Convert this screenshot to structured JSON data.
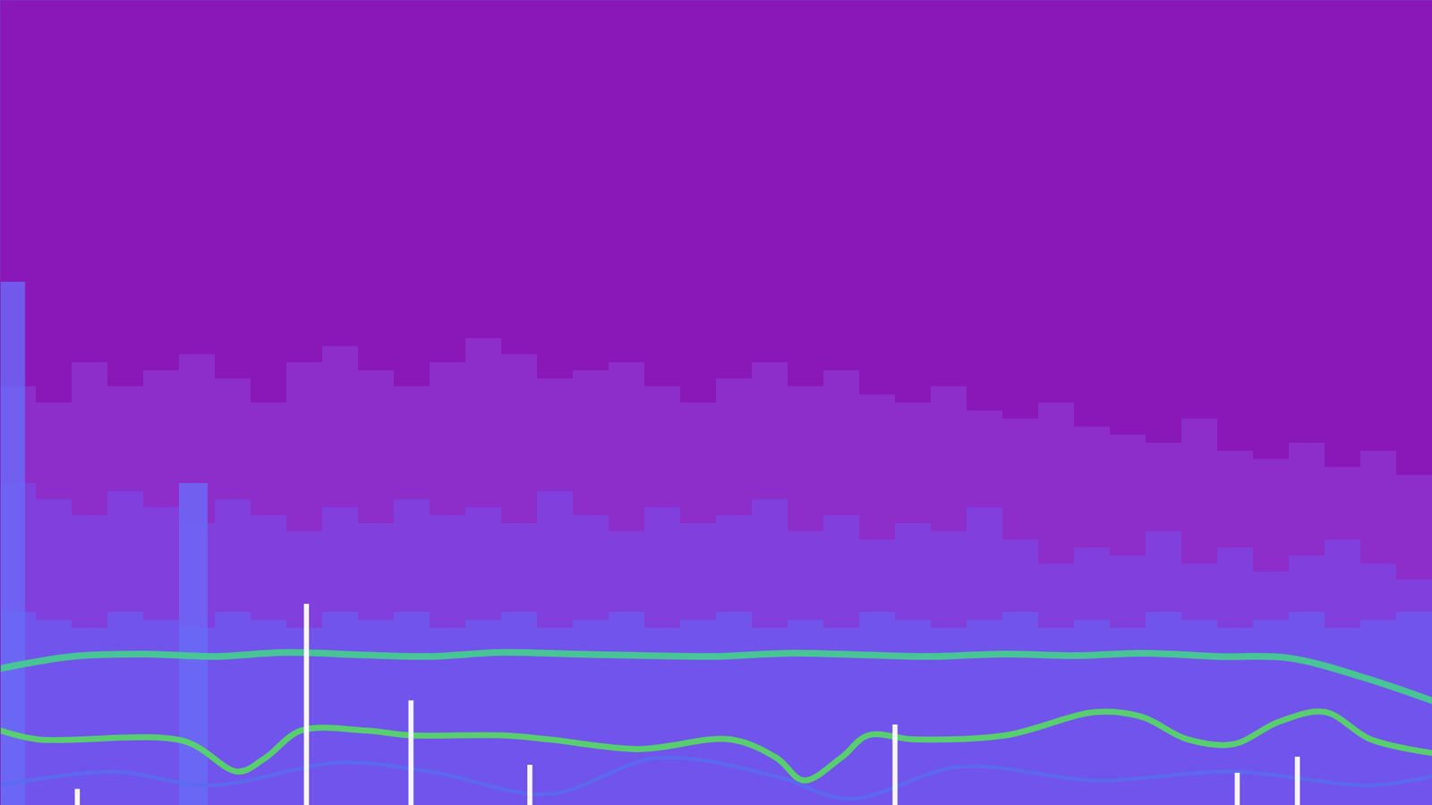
{
  "chart_data": {
    "type": "bar",
    "tick_labels": false,
    "grid": false,
    "xlim": [
      0,
      100
    ],
    "ylim": [
      0,
      100
    ],
    "series": [
      {
        "type": "bar",
        "marker": "column",
        "color": "#8e34d0",
        "x": [
          1.25,
          3.75,
          6.25,
          8.75,
          11.25,
          13.75,
          16.25,
          18.75,
          21.25,
          23.75,
          26.25,
          28.75,
          31.25,
          33.75,
          36.25,
          38.75,
          41.25,
          43.75,
          46.25,
          48.75,
          51.25,
          53.75,
          56.25,
          58.75,
          61.25,
          63.75,
          66.25,
          68.75,
          71.25,
          73.75,
          76.25,
          78.75,
          81.25,
          83.75,
          86.25,
          88.75,
          91.25,
          93.75,
          96.25,
          98.75
        ],
        "values": [
          52,
          50,
          55,
          52,
          54,
          56,
          53,
          50,
          55,
          57,
          54,
          52,
          55,
          58,
          56,
          53,
          54,
          55,
          52,
          50,
          53,
          55,
          52,
          54,
          51,
          50,
          52,
          49,
          48,
          50,
          47,
          46,
          45,
          48,
          44,
          43,
          45,
          42,
          44,
          41
        ]
      },
      {
        "type": "bar",
        "marker": "column",
        "color": "#7d46e2",
        "x": [
          1.25,
          3.75,
          6.25,
          8.75,
          11.25,
          13.75,
          16.25,
          18.75,
          21.25,
          23.75,
          26.25,
          28.75,
          31.25,
          33.75,
          36.25,
          38.75,
          41.25,
          43.75,
          46.25,
          48.75,
          51.25,
          53.75,
          56.25,
          58.75,
          61.25,
          63.75,
          66.25,
          68.75,
          71.25,
          73.75,
          76.25,
          78.75,
          81.25,
          83.75,
          86.25,
          88.75,
          91.25,
          93.75,
          96.25,
          98.75
        ],
        "values": [
          40,
          38,
          36,
          39,
          37,
          35,
          38,
          36,
          34,
          37,
          35,
          38,
          36,
          37,
          35,
          39,
          36,
          34,
          37,
          35,
          36,
          38,
          34,
          36,
          33,
          35,
          34,
          37,
          33,
          30,
          32,
          31,
          34,
          30,
          32,
          29,
          31,
          33,
          30,
          28
        ]
      },
      {
        "type": "bar",
        "marker": "column",
        "color": "#6c5cf2",
        "x": [
          1.25,
          3.75,
          6.25,
          8.75,
          11.25,
          13.75,
          16.25,
          18.75,
          21.25,
          23.75,
          26.25,
          28.75,
          31.25,
          33.75,
          36.25,
          38.75,
          41.25,
          43.75,
          46.25,
          48.75,
          51.25,
          53.75,
          56.25,
          58.75,
          61.25,
          63.75,
          66.25,
          68.75,
          71.25,
          73.75,
          76.25,
          78.75,
          81.25,
          83.75,
          86.25,
          88.75,
          91.25,
          93.75,
          96.25,
          98.75
        ],
        "values": [
          24,
          23,
          22,
          24,
          23,
          22,
          24,
          23,
          22,
          24,
          23,
          24,
          22,
          23,
          24,
          22,
          23,
          24,
          22,
          23,
          24,
          22,
          23,
          22,
          24,
          23,
          22,
          23,
          24,
          22,
          23,
          22,
          24,
          23,
          22,
          23,
          24,
          22,
          23,
          24
        ]
      },
      {
        "type": "bar",
        "marker": "block",
        "color": "#6a6cf8",
        "x": [
          0.75,
          13.5
        ],
        "values": [
          65,
          40
        ]
      },
      {
        "type": "line",
        "color": "#44d08c",
        "x": [
          0,
          5,
          10,
          15,
          20,
          25,
          30,
          35,
          40,
          45,
          50,
          55,
          60,
          65,
          70,
          75,
          80,
          85,
          90,
          95,
          100
        ],
        "values": [
          17,
          18.5,
          18.8,
          18.5,
          19,
          18.7,
          18.5,
          19,
          18.8,
          18.6,
          18.5,
          18.9,
          18.7,
          18.5,
          18.8,
          18.6,
          18.9,
          18.5,
          18.3,
          16,
          13
        ]
      },
      {
        "type": "line",
        "color": "#55dc62",
        "x": [
          0,
          2.6,
          12.8,
          16.6,
          18.5,
          21,
          25.5,
          28.7,
          35,
          38.3,
          44.6,
          51,
          54.2,
          56.1,
          58.7,
          60.6,
          63.8,
          70.2,
          76.5,
          79.7,
          82.9,
          86.1,
          89.3,
          92.5,
          95.7,
          100
        ],
        "values": [
          9.3,
          8.2,
          8.0,
          4.2,
          5.9,
          9.3,
          9.3,
          8.7,
          8.7,
          8.2,
          7.0,
          8.2,
          5.9,
          3.1,
          5.9,
          8.7,
          8.2,
          8.7,
          11.6,
          11.0,
          8.2,
          7.6,
          10.4,
          11.6,
          8.2,
          6.5
        ]
      },
      {
        "type": "line",
        "color": "#5a6cf0",
        "x": [
          0,
          7.7,
          14.7,
          23.6,
          30,
          38.3,
          45.9,
          54.2,
          59.3,
          67,
          76.5,
          86.1,
          95.7,
          100
        ],
        "values": [
          2.5,
          4.2,
          2.5,
          5.3,
          4.2,
          1.4,
          5.9,
          3.6,
          0.8,
          4.8,
          3.1,
          4.2,
          2.5,
          3.6
        ]
      },
      {
        "type": "bar",
        "marker": "spike",
        "color": "#ffffff",
        "x": [
          5.4,
          21.4,
          28.7,
          37,
          62.5,
          86.4,
          90.6
        ],
        "values": [
          2,
          25,
          13,
          5,
          10,
          4,
          6
        ]
      }
    ]
  }
}
